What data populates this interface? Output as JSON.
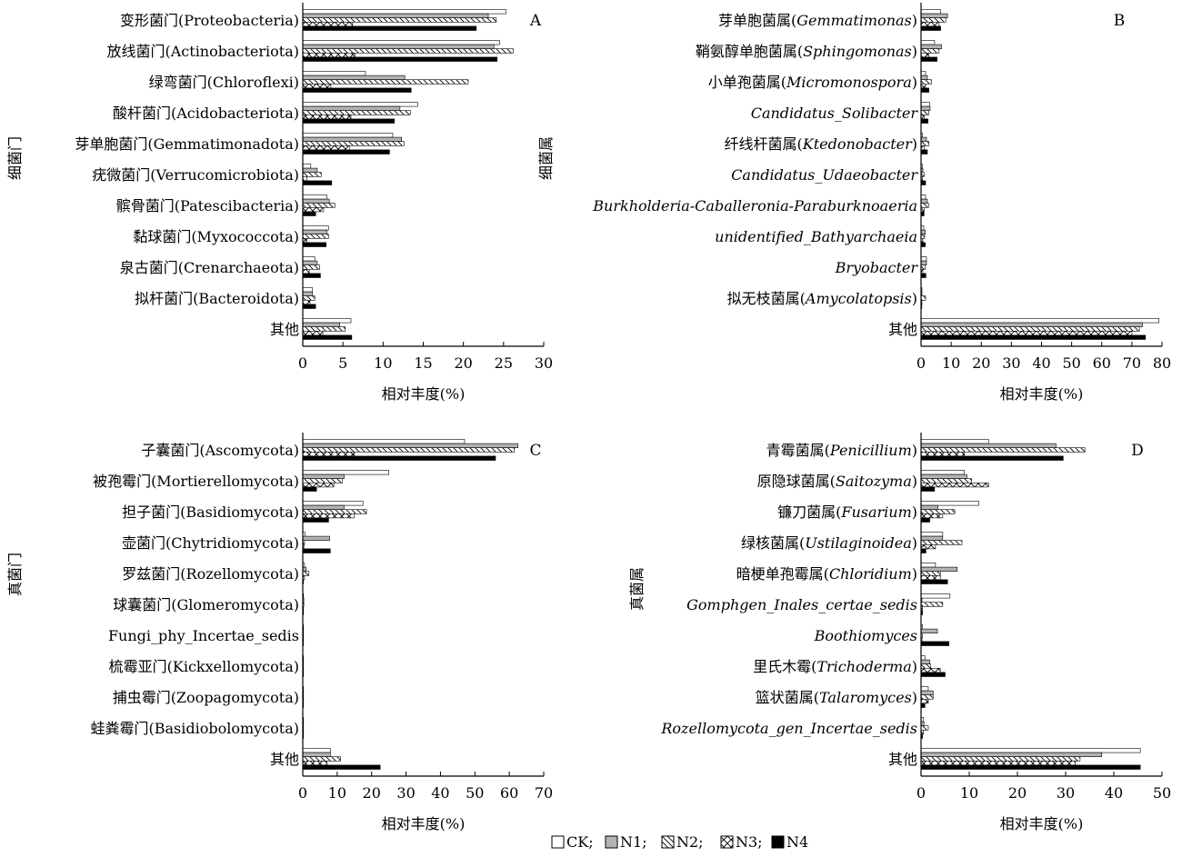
{
  "legend": {
    "items": [
      {
        "label": "CK;",
        "pattern": "ck"
      },
      {
        "label": "N1;",
        "pattern": "n1"
      },
      {
        "label": "N2;",
        "pattern": "n2"
      },
      {
        "label": "N3;",
        "pattern": "n3"
      },
      {
        "label": "N4",
        "pattern": "n4"
      }
    ]
  },
  "chart_data": [
    {
      "type": "bar",
      "orientation": "horizontal",
      "panel": "A",
      "ylabel": "细菌门",
      "xlabel": "相对丰度(%)",
      "xlim": [
        0,
        30
      ],
      "xticks": [
        0,
        5,
        10,
        15,
        20,
        25,
        30
      ],
      "grid": false,
      "categories": [
        [
          {
            "t": "变形菌门(Proteobacteria)"
          }
        ],
        [
          {
            "t": "放线菌门(Actinobacteriota)"
          }
        ],
        [
          {
            "t": "绿弯菌门(Chloroflexi)"
          }
        ],
        [
          {
            "t": "酸杆菌门(Acidobacteriota)"
          }
        ],
        [
          {
            "t": "芽单胞菌门(Gemmatimonadota)"
          }
        ],
        [
          {
            "t": "疣微菌门(Verrucomicrobiota)"
          }
        ],
        [
          {
            "t": "髌骨菌门(Patescibacteria)"
          }
        ],
        [
          {
            "t": "黏球菌门(Myxococcota)"
          }
        ],
        [
          {
            "t": "泉古菌门(Crenarchaeota)"
          }
        ],
        [
          {
            "t": "拟杆菌门(Bacteroidota)"
          }
        ],
        [
          {
            "t": "其他"
          }
        ]
      ],
      "series": [
        {
          "name": "CK",
          "values": [
            25.3,
            24.5,
            7.8,
            14.3,
            11.2,
            1.0,
            3.0,
            3.2,
            1.5,
            1.2,
            6.0
          ]
        },
        {
          "name": "N1",
          "values": [
            23.1,
            23.8,
            12.7,
            12.1,
            12.3,
            1.8,
            3.3,
            3.0,
            1.8,
            1.2,
            4.6
          ]
        },
        {
          "name": "N2",
          "values": [
            24.1,
            26.2,
            20.6,
            13.4,
            12.6,
            2.3,
            4.0,
            3.2,
            2.1,
            1.5,
            5.3
          ]
        },
        {
          "name": "N3",
          "values": [
            6.2,
            6.5,
            3.5,
            6.0,
            5.8,
            0.5,
            2.6,
            0.5,
            0.8,
            0.9,
            2.5
          ]
        },
        {
          "name": "N4",
          "values": [
            21.6,
            24.2,
            13.5,
            11.4,
            10.8,
            3.6,
            1.6,
            2.9,
            2.2,
            1.6,
            6.1
          ]
        }
      ]
    },
    {
      "type": "bar",
      "orientation": "horizontal",
      "panel": "B",
      "ylabel": "细菌属",
      "xlabel": "相对丰度(%)",
      "xlim": [
        0,
        80
      ],
      "xticks": [
        0,
        10,
        20,
        30,
        40,
        50,
        60,
        70,
        80
      ],
      "grid": false,
      "categories": [
        [
          {
            "t": "芽单胞菌属("
          },
          {
            "t": "Gemmatimonas",
            "i": true
          },
          {
            "t": ")"
          }
        ],
        [
          {
            "t": "鞘氨醇单胞菌属("
          },
          {
            "t": "Sphingomonas",
            "i": true
          },
          {
            "t": ")"
          }
        ],
        [
          {
            "t": "小单孢菌属("
          },
          {
            "t": "Micromonospora",
            "i": true
          },
          {
            "t": ")"
          }
        ],
        [
          {
            "t": "Candidatus_Solibacter",
            "i": true
          }
        ],
        [
          {
            "t": "纤线杆菌属("
          },
          {
            "t": "Ktedonobacter",
            "i": true
          },
          {
            "t": ")"
          }
        ],
        [
          {
            "t": "Candidatus_Udaeobacter",
            "i": true
          }
        ],
        [
          {
            "t": "Burkholderia-Caballeronia-Paraburknoaeria",
            "i": true
          }
        ],
        [
          {
            "t": "unidentified_Bathyarchaeia",
            "i": true
          }
        ],
        [
          {
            "t": "Bryobacter",
            "i": true
          }
        ],
        [
          {
            "t": "拟无枝菌属("
          },
          {
            "t": "Amycolatopsis",
            "i": true
          },
          {
            "t": ")"
          }
        ],
        [
          {
            "t": "其他"
          }
        ]
      ],
      "series": [
        {
          "name": "CK",
          "values": [
            6.5,
            4.5,
            1.5,
            2.8,
            0.5,
            0.4,
            1.5,
            0.9,
            1.8,
            0.3,
            79.0
          ]
        },
        {
          "name": "N1",
          "values": [
            8.8,
            6.8,
            2.1,
            3.0,
            1.8,
            0.6,
            2.1,
            1.4,
            1.8,
            0.3,
            73.5
          ]
        },
        {
          "name": "N2",
          "values": [
            8.2,
            6.0,
            3.5,
            2.6,
            2.6,
            1.0,
            2.5,
            1.2,
            1.4,
            1.5,
            72.5
          ]
        },
        {
          "name": "N3",
          "values": [
            6.0,
            2.5,
            1.5,
            1.0,
            1.0,
            0.5,
            1.0,
            0.6,
            0.6,
            0.3,
            70.0
          ]
        },
        {
          "name": "N4",
          "values": [
            6.5,
            5.3,
            2.6,
            2.3,
            2.1,
            1.5,
            1.0,
            1.4,
            1.6,
            0.2,
            74.5
          ]
        }
      ]
    },
    {
      "type": "bar",
      "orientation": "horizontal",
      "panel": "C",
      "ylabel": "真菌门",
      "xlabel": "相对丰度(%)",
      "xlim": [
        0,
        70
      ],
      "xticks": [
        0,
        10,
        20,
        30,
        40,
        50,
        60,
        70
      ],
      "grid": false,
      "categories": [
        [
          {
            "t": "子囊菌门(Ascomycota)"
          }
        ],
        [
          {
            "t": "被孢霉门(Mortierellomycota)"
          }
        ],
        [
          {
            "t": "担子菌门(Basidiomycota)"
          }
        ],
        [
          {
            "t": "壶菌门(Chytridiomycota)"
          }
        ],
        [
          {
            "t": "罗兹菌门(Rozellomycota)"
          }
        ],
        [
          {
            "t": "球囊菌门(Glomeromycota)"
          }
        ],
        [
          {
            "t": "Fungi_phy_Incertae_sedis"
          }
        ],
        [
          {
            "t": "梳霉亚门(Kickxellomycota)"
          }
        ],
        [
          {
            "t": "捕虫霉门(Zoopagomycota)"
          }
        ],
        [
          {
            "t": "蛙粪霉门(Basidiobolomycota)"
          }
        ],
        [
          {
            "t": "其他"
          }
        ]
      ],
      "series": [
        {
          "name": "CK",
          "values": [
            47.0,
            25.0,
            17.5,
            0.6,
            0.5,
            0.2,
            0.1,
            0.1,
            0.1,
            0.1,
            8.0
          ]
        },
        {
          "name": "N1",
          "values": [
            62.5,
            12.0,
            12.0,
            7.8,
            1.0,
            0.3,
            0.1,
            0.1,
            0.1,
            0.1,
            8.0
          ]
        },
        {
          "name": "N2",
          "values": [
            61.5,
            11.5,
            18.5,
            0.5,
            1.8,
            0.3,
            0.1,
            0.1,
            0.1,
            0.1,
            11.0
          ]
        },
        {
          "name": "N3",
          "values": [
            15.0,
            9.0,
            15.0,
            0.3,
            0.5,
            0.2,
            0.1,
            0.1,
            0.1,
            0.1,
            7.0
          ]
        },
        {
          "name": "N4",
          "values": [
            56.0,
            4.0,
            7.5,
            8.0,
            0.2,
            0.2,
            0.1,
            0.1,
            0.1,
            0.1,
            22.5
          ]
        }
      ]
    },
    {
      "type": "bar",
      "orientation": "horizontal",
      "panel": "D",
      "ylabel": "真菌属",
      "xlabel": "相对丰度(%)",
      "xlim": [
        0,
        50
      ],
      "xticks": [
        0,
        10,
        20,
        30,
        40,
        50
      ],
      "grid": false,
      "categories": [
        [
          {
            "t": "青霉菌属("
          },
          {
            "t": "Penicillium",
            "i": true
          },
          {
            "t": ")"
          }
        ],
        [
          {
            "t": "原隐球菌属("
          },
          {
            "t": "Saitozyma",
            "i": true
          },
          {
            "t": ")"
          }
        ],
        [
          {
            "t": "镰刀菌属("
          },
          {
            "t": "Fusarium",
            "i": true
          },
          {
            "t": ")"
          }
        ],
        [
          {
            "t": "绿核菌属("
          },
          {
            "t": "Ustilaginoidea",
            "i": true
          },
          {
            "t": ")"
          }
        ],
        [
          {
            "t": "暗梗单孢霉属("
          },
          {
            "t": "Chloridium",
            "i": true
          },
          {
            "t": ")"
          }
        ],
        [
          {
            "t": "Gomphgen_Inales_certae_sedis",
            "i": true
          }
        ],
        [
          {
            "t": "Boothiomyces",
            "i": true
          }
        ],
        [
          {
            "t": "里氏木霉("
          },
          {
            "t": "Trichoderma",
            "i": true
          },
          {
            "t": ")"
          }
        ],
        [
          {
            "t": "篮状菌属("
          },
          {
            "t": "Talaromyces",
            "i": true
          },
          {
            "t": ")"
          }
        ],
        [
          {
            "t": "Rozellomycota_gen_Incertae_sedis",
            "i": true
          }
        ],
        [
          {
            "t": "其他"
          }
        ]
      ],
      "series": [
        {
          "name": "CK",
          "values": [
            14.0,
            9.0,
            12.0,
            4.5,
            3.0,
            6.0,
            0.3,
            0.8,
            1.5,
            0.5,
            45.5
          ]
        },
        {
          "name": "N1",
          "values": [
            28.0,
            9.5,
            3.5,
            4.5,
            7.5,
            0.2,
            3.4,
            1.8,
            2.5,
            0.6,
            37.5
          ]
        },
        {
          "name": "N2",
          "values": [
            34.0,
            10.5,
            7.0,
            8.5,
            4.0,
            4.5,
            0.3,
            2.0,
            2.5,
            1.5,
            33.0
          ]
        },
        {
          "name": "N3",
          "values": [
            9.0,
            14.0,
            4.5,
            3.0,
            4.0,
            0.3,
            0.2,
            4.0,
            1.5,
            0.5,
            32.0
          ]
        },
        {
          "name": "N4",
          "values": [
            29.5,
            2.8,
            1.8,
            1.0,
            5.5,
            0.3,
            5.8,
            5.0,
            0.8,
            0.3,
            45.5
          ]
        }
      ]
    }
  ]
}
